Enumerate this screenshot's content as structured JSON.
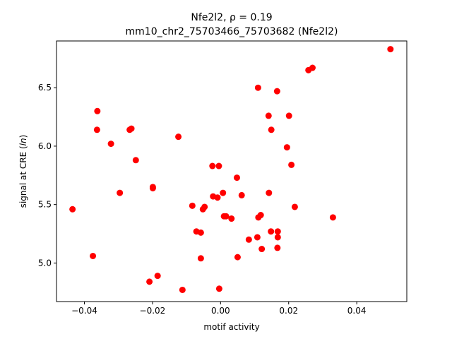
{
  "chart_data": {
    "type": "scatter",
    "title_line1": "Nfe2l2, ρ = 0.19",
    "title_line2": "mm10_chr2_75703466_75703682 (Nfe2l2)",
    "xlabel": "motif activity",
    "ylabel": "signal at CRE (ln)",
    "xlim": [
      -0.0482,
      0.0547
    ],
    "ylim": [
      4.67,
      6.9
    ],
    "xticks": [
      -0.04,
      -0.02,
      0.0,
      0.02,
      0.04
    ],
    "xtick_labels": [
      "−0.04",
      "−0.02",
      "0.00",
      "0.02",
      "0.04"
    ],
    "yticks": [
      5.0,
      5.5,
      6.0,
      6.5
    ],
    "ytick_labels": [
      "5.0",
      "5.5",
      "6.0",
      "6.5"
    ],
    "grid": false,
    "point_color": "#ff0000",
    "points": [
      {
        "x": -0.0435,
        "y": 5.46
      },
      {
        "x": -0.0375,
        "y": 5.06
      },
      {
        "x": -0.0362,
        "y": 6.3
      },
      {
        "x": -0.0363,
        "y": 6.14
      },
      {
        "x": -0.0322,
        "y": 6.02
      },
      {
        "x": -0.0296,
        "y": 5.6
      },
      {
        "x": -0.0267,
        "y": 6.14
      },
      {
        "x": -0.0262,
        "y": 6.15
      },
      {
        "x": -0.0249,
        "y": 5.88
      },
      {
        "x": -0.0209,
        "y": 4.84
      },
      {
        "x": -0.0199,
        "y": 5.65
      },
      {
        "x": -0.0199,
        "y": 5.64
      },
      {
        "x": -0.0185,
        "y": 4.89
      },
      {
        "x": -0.0124,
        "y": 6.08
      },
      {
        "x": -0.0112,
        "y": 4.77
      },
      {
        "x": -0.0083,
        "y": 5.49
      },
      {
        "x": -0.0071,
        "y": 5.27
      },
      {
        "x": -0.0058,
        "y": 5.26
      },
      {
        "x": -0.0058,
        "y": 5.04
      },
      {
        "x": -0.0052,
        "y": 5.46
      },
      {
        "x": -0.0047,
        "y": 5.48
      },
      {
        "x": -0.0024,
        "y": 5.83
      },
      {
        "x": -0.0022,
        "y": 5.57
      },
      {
        "x": -0.0009,
        "y": 5.56
      },
      {
        "x": -0.0005,
        "y": 5.83
      },
      {
        "x": -0.0004,
        "y": 4.78
      },
      {
        "x": 0.0007,
        "y": 5.6
      },
      {
        "x": 0.001,
        "y": 5.4
      },
      {
        "x": 0.0016,
        "y": 5.4
      },
      {
        "x": 0.0032,
        "y": 5.38
      },
      {
        "x": 0.0048,
        "y": 5.73
      },
      {
        "x": 0.005,
        "y": 5.05
      },
      {
        "x": 0.0062,
        "y": 5.58
      },
      {
        "x": 0.0083,
        "y": 5.2
      },
      {
        "x": 0.0108,
        "y": 5.22
      },
      {
        "x": 0.011,
        "y": 6.5
      },
      {
        "x": 0.0111,
        "y": 5.39
      },
      {
        "x": 0.0118,
        "y": 5.41
      },
      {
        "x": 0.0121,
        "y": 5.12
      },
      {
        "x": 0.0141,
        "y": 6.26
      },
      {
        "x": 0.0142,
        "y": 5.6
      },
      {
        "x": 0.0148,
        "y": 5.27
      },
      {
        "x": 0.0149,
        "y": 6.14
      },
      {
        "x": 0.0166,
        "y": 6.47
      },
      {
        "x": 0.0167,
        "y": 5.13
      },
      {
        "x": 0.0168,
        "y": 5.27
      },
      {
        "x": 0.0168,
        "y": 5.22
      },
      {
        "x": 0.0195,
        "y": 5.99
      },
      {
        "x": 0.0201,
        "y": 6.26
      },
      {
        "x": 0.0208,
        "y": 5.84
      },
      {
        "x": 0.0218,
        "y": 5.48
      },
      {
        "x": 0.0258,
        "y": 6.65
      },
      {
        "x": 0.027,
        "y": 6.67
      },
      {
        "x": 0.033,
        "y": 5.39
      },
      {
        "x": 0.0499,
        "y": 6.83
      }
    ]
  }
}
